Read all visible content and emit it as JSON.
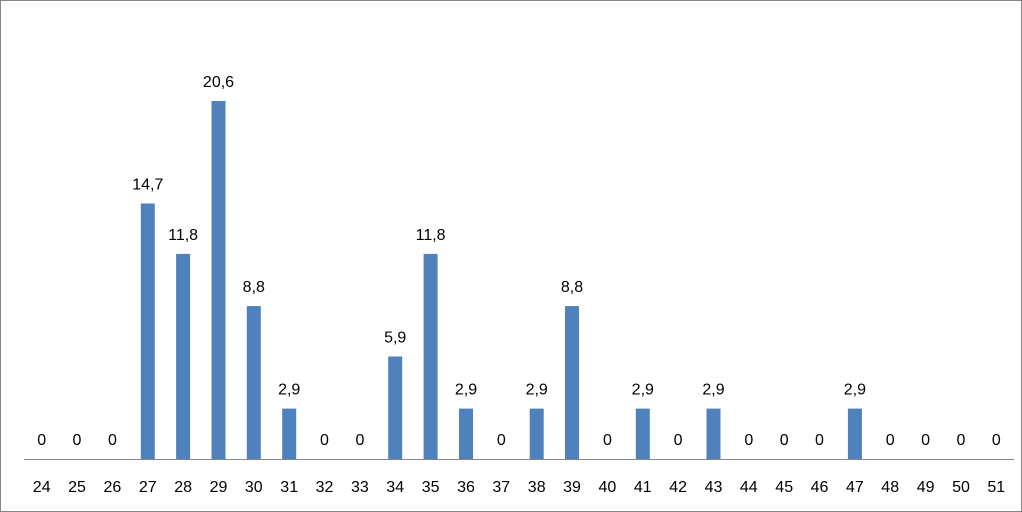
{
  "chart_data": {
    "type": "bar",
    "title": "",
    "xlabel": "",
    "ylabel": "",
    "categories": [
      "24",
      "25",
      "26",
      "27",
      "28",
      "29",
      "30",
      "31",
      "32",
      "33",
      "34",
      "35",
      "36",
      "37",
      "38",
      "39",
      "40",
      "41",
      "42",
      "43",
      "44",
      "45",
      "46",
      "47",
      "48",
      "49",
      "50",
      "51"
    ],
    "values": [
      0,
      0,
      0,
      14.7,
      11.8,
      20.6,
      8.8,
      2.9,
      0,
      0,
      5.9,
      11.8,
      2.9,
      0,
      2.9,
      8.8,
      0,
      2.9,
      0,
      2.9,
      0,
      0,
      0,
      2.9,
      0,
      0,
      0,
      0
    ],
    "data_labels": [
      "0",
      "0",
      "0",
      "14,7",
      "11,8",
      "20,6",
      "8,8",
      "2,9",
      "0",
      "0",
      "5,9",
      "11,8",
      "2,9",
      "0",
      "2,9",
      "8,8",
      "0",
      "2,9",
      "0",
      "2,9",
      "0",
      "0",
      "0",
      "2,9",
      "0",
      "0",
      "0",
      "0"
    ],
    "ylim": [
      0,
      20.6
    ],
    "grid": false,
    "legend": "none",
    "bar_color": "#4F81BD",
    "axis_color": "#868686"
  }
}
